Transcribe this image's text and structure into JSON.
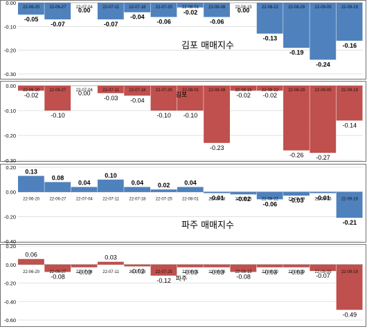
{
  "chart_data": [
    {
      "type": "bar",
      "title": "김포 매매지수",
      "categories": [
        "22-06-20",
        "22-06-27",
        "22-07-04",
        "22-07-11",
        "22-07-18",
        "22-07-25",
        "22-08-01",
        "22-08-08",
        "22-08-15",
        "22-08-22",
        "22-08-29",
        "22-09-05",
        "22-09-19"
      ],
      "values": [
        -0.05,
        -0.07,
        0.0,
        -0.07,
        -0.04,
        -0.06,
        -0.02,
        -0.06,
        0.0,
        -0.13,
        -0.19,
        -0.24,
        -0.16
      ],
      "value_labels": [
        "-0.05",
        "-0.07",
        "0.00",
        "-0.07",
        "-0.04",
        "-0.06",
        "-0.02",
        "-0.06",
        "0.00",
        "-0.13",
        "-0.19",
        "-0.24",
        "-0.16"
      ],
      "ylim": [
        -0.3,
        0.0
      ],
      "yticks": [
        "0.00",
        "-0.10",
        "-0.20",
        "-0.30"
      ],
      "bar_color": "#4f81bd",
      "grid": true
    },
    {
      "type": "bar",
      "title": "김포",
      "categories": [
        "22-06-20",
        "22-06-27",
        "22-07-04",
        "22-07-11",
        "22-07-18",
        "22-07-25",
        "22-08-01",
        "22-08-08",
        "22-08-15",
        "22-08-22",
        "22-08-29",
        "22-09-05",
        "22-09-19"
      ],
      "values": [
        -0.02,
        -0.1,
        0.0,
        -0.03,
        -0.04,
        -0.1,
        -0.1,
        -0.23,
        -0.02,
        -0.02,
        -0.26,
        -0.27,
        -0.14
      ],
      "value_labels": [
        "-0.02",
        "-0.10",
        "0.00",
        "-0.03",
        "-0.04",
        "-0.10",
        "-0.10",
        "-0.23",
        "-0.02",
        "-0.02",
        "-0.26",
        "-0.27",
        "-0.14"
      ],
      "ylim": [
        -0.3,
        0.0
      ],
      "yticks": [
        "0.00",
        "-0.10",
        "-0.20",
        "-0.30"
      ],
      "bar_color": "#c0504d",
      "grid": true
    },
    {
      "type": "bar",
      "title": "파주 매매지수",
      "categories": [
        "22-06-20",
        "22-06-27",
        "22-07-04",
        "22-07-11",
        "22-07-18",
        "22-07-25",
        "22-08-01",
        "22-08-08",
        "22-08-15",
        "22-08-22",
        "22-08-29",
        "22-09-05",
        "22-09-19"
      ],
      "values": [
        0.13,
        0.08,
        0.04,
        0.1,
        0.04,
        0.02,
        0.04,
        -0.01,
        -0.02,
        -0.06,
        -0.03,
        -0.01,
        -0.21
      ],
      "value_labels": [
        "0.13",
        "0.08",
        "0.04",
        "0.10",
        "0.04",
        "0.02",
        "0.04",
        "-0.01",
        "-0.02",
        "-0.06",
        "-0.03",
        "-0.01",
        "-0.21"
      ],
      "ylim": [
        -0.4,
        0.2
      ],
      "yticks": [
        "0.20",
        "0.00",
        "-0.20",
        "-0.40"
      ],
      "bar_color": "#4f81bd",
      "grid": true
    },
    {
      "type": "bar",
      "title": "파주",
      "categories": [
        "22-06-20",
        "22-06-27",
        "22-07-04",
        "22-07-11",
        "22-07-18",
        "22-07-25",
        "22-08-01",
        "22-08-08",
        "22-08-15",
        "22-08-22",
        "22-08-29",
        "22-09-05",
        "22-09-19"
      ],
      "values": [
        0.06,
        -0.08,
        -0.03,
        0.03,
        -0.02,
        -0.12,
        -0.03,
        -0.03,
        -0.08,
        -0.03,
        -0.03,
        -0.07,
        -0.49
      ],
      "value_labels": [
        "0.06",
        "-0.08",
        "-0.03",
        "0.03",
        "-0.02",
        "-0.12",
        "-0.03",
        "-0.03",
        "-0.08",
        "-0.03",
        "-0.03",
        "-0.07",
        "-0.49"
      ],
      "ylim": [
        -0.6,
        0.2
      ],
      "yticks": [
        "0.20",
        "0.00",
        "-0.20",
        "-0.40",
        "-0.60"
      ],
      "bar_color": "#c0504d",
      "grid": true
    }
  ]
}
